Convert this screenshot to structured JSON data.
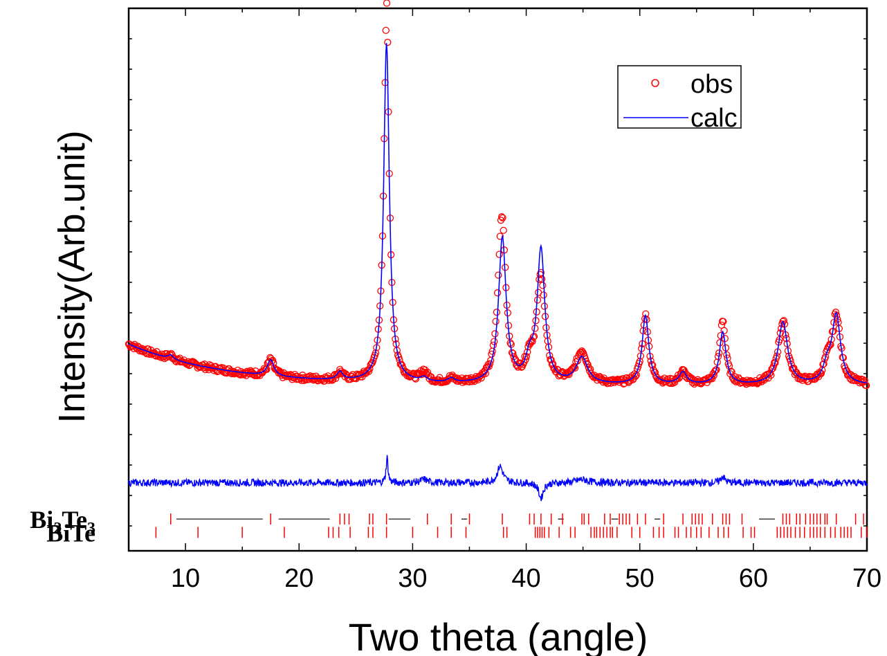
{
  "chart_data": {
    "type": "scatter",
    "xlabel": "Two theta (angle)",
    "ylabel": "Intensity(Arb.unit)",
    "xlim": [
      5,
      70
    ],
    "ylim": [
      0,
      100
    ],
    "x_ticks": [
      10,
      20,
      30,
      40,
      50,
      60,
      70
    ],
    "x_tick_labels": [
      "10",
      "20",
      "30",
      "40",
      "50",
      "60",
      "70"
    ],
    "y_tick_labels": "none",
    "legend": {
      "position": "top-right",
      "entries": [
        "obs",
        "calc"
      ]
    },
    "colors": {
      "obs": "#ff0000",
      "calc": "#0000ff",
      "difference": "#0000ff",
      "reflections": "#ff0000"
    },
    "background": {
      "a": 3.6,
      "b": 10.2,
      "c": 0.12
    },
    "peaks": [
      {
        "x": 8.7,
        "h": 1.0,
        "w": 0.3
      },
      {
        "x": 17.5,
        "h": 4.0,
        "w": 0.35
      },
      {
        "x": 23.6,
        "h": 2.0,
        "w": 0.3
      },
      {
        "x": 27.7,
        "h": 84.0,
        "w": 0.3
      },
      {
        "x": 31.0,
        "h": 1.0,
        "w": 0.35
      },
      {
        "x": 33.4,
        "h": 1.0,
        "w": 0.35
      },
      {
        "x": 37.9,
        "h": 36.0,
        "w": 0.4
      },
      {
        "x": 40.3,
        "h": 5.0,
        "w": 0.4
      },
      {
        "x": 41.3,
        "h": 33.0,
        "w": 0.4
      },
      {
        "x": 44.9,
        "h": 6.5,
        "w": 0.6
      },
      {
        "x": 50.5,
        "h": 17.0,
        "w": 0.35
      },
      {
        "x": 53.8,
        "h": 3.0,
        "w": 0.4
      },
      {
        "x": 57.3,
        "h": 13.0,
        "w": 0.35
      },
      {
        "x": 62.6,
        "h": 15.5,
        "w": 0.5
      },
      {
        "x": 66.5,
        "h": 4.0,
        "w": 0.4
      },
      {
        "x": 67.3,
        "h": 17.0,
        "w": 0.45
      }
    ],
    "obs_deviations": [
      {
        "x": 27.75,
        "dy": 11.5,
        "w": 0.1
      },
      {
        "x": 37.7,
        "dy": 7.5,
        "w": 0.3
      },
      {
        "x": 41.3,
        "dy": -7.0,
        "w": 0.25
      },
      {
        "x": 44.9,
        "dy": 1.5,
        "w": 0.6
      },
      {
        "x": 31.0,
        "dy": 1.5,
        "w": 0.35
      },
      {
        "x": 57.3,
        "dy": 3.0,
        "w": 0.2
      }
    ],
    "difference_offset": -20.5,
    "series": [
      {
        "name": "obs",
        "style": "open-circle-markers",
        "x_step": 0.075
      },
      {
        "name": "calc",
        "style": "line",
        "x_step": 0.05
      }
    ],
    "reflection_phases": [
      {
        "name_parts": [
          "Bi",
          "2",
          "Te",
          "3"
        ],
        "row_y": -29.5,
        "positions": [
          8.7,
          17.5,
          23.6,
          24.0,
          24.4,
          26.2,
          26.5,
          27.7,
          31.3,
          33.4,
          35.0,
          37.9,
          40.3,
          40.7,
          41.3,
          42.2,
          43.2,
          44.9,
          45.1,
          45.5,
          46.9,
          47.4,
          48.2,
          48.5,
          48.8,
          49.1,
          49.8,
          50.5,
          52.1,
          53.8,
          54.6,
          54.9,
          55.2,
          55.5,
          56.4,
          57.3,
          57.6,
          57.9,
          59.0,
          62.6,
          62.9,
          63.2,
          63.8,
          64.1,
          64.6,
          65.0,
          65.3,
          65.6,
          65.9,
          66.3,
          66.5,
          67.3,
          69.0,
          69.7
        ],
        "link_segments": [
          [
            9.2,
            16.8
          ],
          [
            18.2,
            22.7
          ],
          [
            27.9,
            29.8
          ],
          [
            34.3,
            34.8
          ],
          [
            42.8,
            43.3
          ],
          [
            47.5,
            48.1
          ],
          [
            51.3,
            51.8
          ],
          [
            60.5,
            61.9
          ]
        ]
      },
      {
        "name_parts": [
          "BiTe"
        ],
        "row_y": -32.8,
        "positions": [
          7.4,
          11.1,
          15.0,
          18.7,
          22.6,
          23.0,
          23.5,
          24.5,
          26.1,
          26.5,
          27.7,
          30.0,
          32.2,
          33.4,
          34.7,
          38.0,
          38.3,
          40.8,
          41.0,
          41.2,
          41.4,
          41.6,
          42.0,
          42.9,
          43.9,
          44.3,
          45.7,
          46.0,
          46.2,
          46.5,
          46.8,
          47.1,
          47.4,
          47.6,
          48.0,
          49.3,
          50.0,
          51.2,
          51.7,
          52.1,
          53.1,
          53.4,
          54.1,
          54.5,
          55.0,
          55.4,
          56.1,
          56.9,
          57.4,
          57.8,
          59.1,
          59.8,
          60.1,
          62.1,
          62.4,
          62.7,
          63.0,
          63.3,
          63.7,
          64.1,
          64.5,
          65.0,
          65.3,
          65.6,
          65.9,
          66.3,
          66.8,
          67.2,
          67.7,
          68.0,
          68.3,
          68.6,
          69.5,
          70.0
        ]
      }
    ]
  }
}
